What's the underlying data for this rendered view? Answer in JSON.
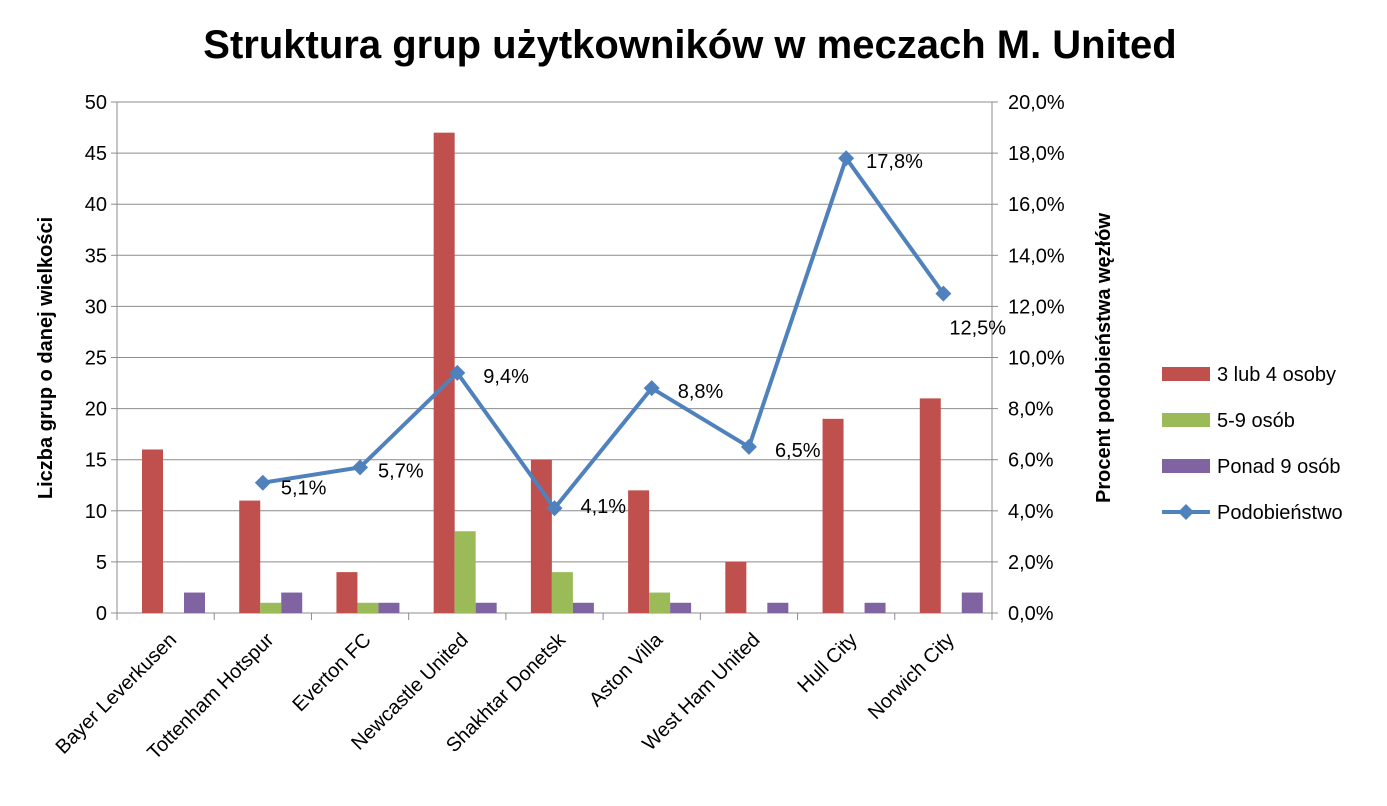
{
  "chart_data": {
    "type": "bar",
    "title": "Struktura grup użytkowników w meczach M. United",
    "ylabel": "Liczba grup o danej wielkości",
    "y2label": "Procent  podobieństwa  węzłów",
    "ylim": [
      0,
      50
    ],
    "y2lim": [
      0,
      0.2
    ],
    "yticks": [
      "0",
      "5",
      "10",
      "15",
      "20",
      "25",
      "30",
      "35",
      "40",
      "45",
      "50"
    ],
    "y2ticks": [
      "0,0%",
      "2,0%",
      "4,0%",
      "6,0%",
      "8,0%",
      "10,0%",
      "12,0%",
      "14,0%",
      "16,0%",
      "18,0%",
      "20,0%"
    ],
    "grid": "horizontal",
    "legend_position": "right",
    "categories": [
      "Bayer Leverkusen",
      "Tottenham Hotspur",
      "Everton FC",
      "Newcastle United",
      "Shakhtar Donetsk",
      "Aston Villa",
      "West Ham United",
      "Hull City",
      "Norwich City"
    ],
    "series": [
      {
        "name": "3 lub 4 osoby",
        "type": "bar",
        "color": "#c0504d",
        "values": [
          16,
          11,
          4,
          47,
          15,
          12,
          5,
          19,
          21
        ]
      },
      {
        "name": "5-9 osób",
        "type": "bar",
        "color": "#9bbb59",
        "values": [
          0,
          1,
          1,
          8,
          4,
          2,
          0,
          0,
          0
        ]
      },
      {
        "name": "Ponad 9 osób",
        "type": "bar",
        "color": "#8064a2",
        "values": [
          2,
          2,
          1,
          1,
          1,
          1,
          1,
          1,
          2
        ]
      },
      {
        "name": "Podobieństwo",
        "type": "line",
        "axis": "right",
        "color": "#4f81bd",
        "values": [
          null,
          0.051,
          0.057,
          0.094,
          0.041,
          0.088,
          0.065,
          0.178,
          0.125
        ],
        "labels": [
          null,
          "5,1%",
          "5,7%",
          "9,4%",
          "4,1%",
          "8,8%",
          "6,5%",
          "17,8%",
          "12,5%"
        ]
      }
    ]
  }
}
